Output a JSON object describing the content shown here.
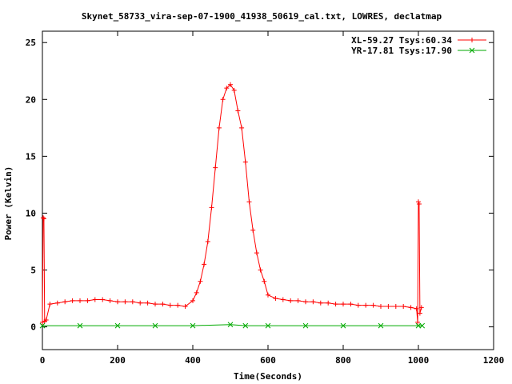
{
  "chart_data": {
    "type": "line",
    "title": "Skynet_58733_vira-sep-07-1900_41938_50619_cal.txt, LOWRES, declatmap",
    "xlabel": "Time(Seconds)",
    "ylabel": "Power (Kelvin)",
    "xlim": [
      0,
      1200
    ],
    "ylim": [
      -2,
      26
    ],
    "x_ticks": [
      0,
      200,
      400,
      600,
      800,
      1000,
      1200
    ],
    "y_ticks": [
      0,
      5,
      10,
      15,
      20,
      25
    ],
    "grid": false,
    "legend_position": "top-right",
    "series": [
      {
        "name": "XL-59.27 Tsys:60.34",
        "color": "#ff0000",
        "marker": "plus",
        "x": [
          0,
          2,
          4,
          6,
          10,
          20,
          40,
          60,
          80,
          100,
          120,
          140,
          160,
          180,
          200,
          220,
          240,
          260,
          280,
          300,
          320,
          340,
          360,
          380,
          400,
          410,
          420,
          430,
          440,
          450,
          460,
          470,
          480,
          490,
          500,
          510,
          520,
          530,
          540,
          550,
          560,
          570,
          580,
          590,
          600,
          620,
          640,
          660,
          680,
          700,
          720,
          740,
          760,
          780,
          800,
          820,
          840,
          860,
          880,
          900,
          920,
          940,
          960,
          980,
          995,
          998,
          1000,
          1002,
          1004,
          1008
        ],
        "y": [
          0.4,
          9.6,
          9.5,
          0.5,
          0.6,
          2.0,
          2.1,
          2.2,
          2.3,
          2.3,
          2.3,
          2.4,
          2.4,
          2.3,
          2.2,
          2.2,
          2.2,
          2.1,
          2.1,
          2.0,
          2.0,
          1.9,
          1.9,
          1.8,
          2.3,
          3.0,
          4.0,
          5.5,
          7.5,
          10.5,
          14.0,
          17.5,
          20.0,
          21.0,
          21.3,
          20.8,
          19.0,
          17.5,
          14.5,
          11.0,
          8.5,
          6.5,
          5.0,
          4.0,
          2.8,
          2.5,
          2.4,
          2.3,
          2.3,
          2.2,
          2.2,
          2.1,
          2.1,
          2.0,
          2.0,
          2.0,
          1.9,
          1.9,
          1.9,
          1.8,
          1.8,
          1.8,
          1.8,
          1.7,
          1.6,
          0.4,
          11.0,
          10.8,
          1.2,
          1.7
        ]
      },
      {
        "name": "YR-17.81 Tsys:17.90",
        "color": "#00aa00",
        "marker": "cross",
        "x": [
          0,
          100,
          200,
          300,
          400,
          500,
          540,
          600,
          700,
          800,
          900,
          1000,
          1010
        ],
        "y": [
          0.1,
          0.1,
          0.1,
          0.1,
          0.1,
          0.2,
          0.1,
          0.1,
          0.1,
          0.1,
          0.1,
          0.1,
          0.1
        ]
      }
    ]
  }
}
